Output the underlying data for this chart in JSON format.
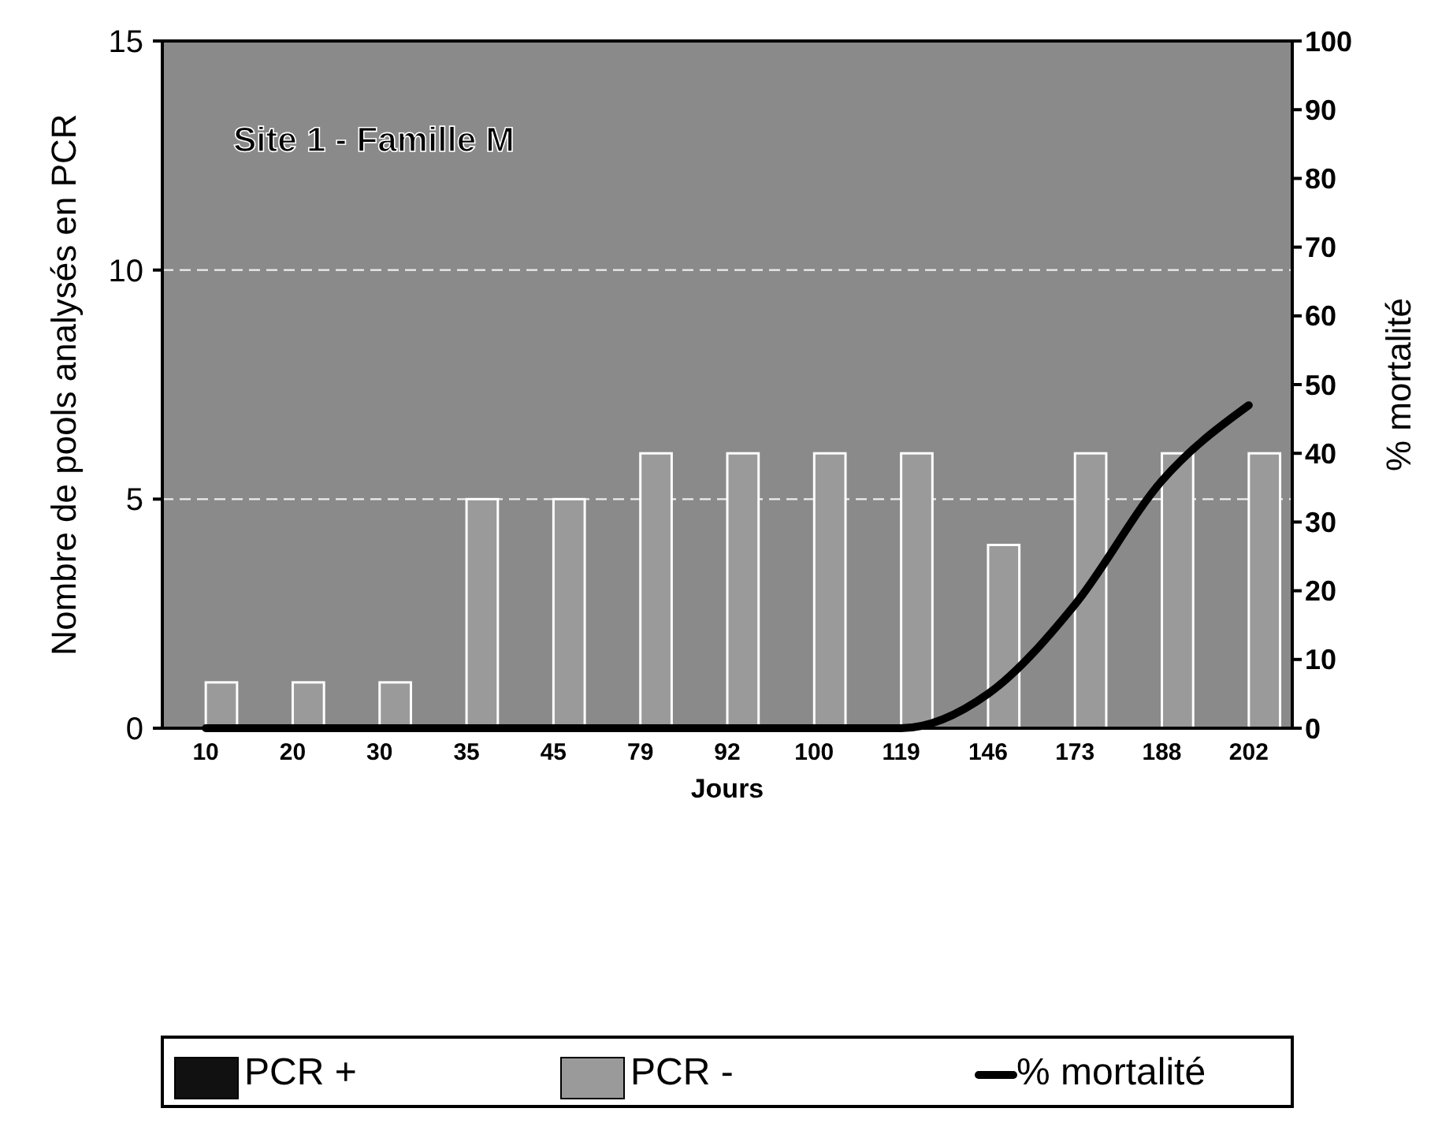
{
  "chart_data": {
    "type": "bar",
    "title": "Site 1 - Famille M",
    "xlabel": "Jours",
    "ylabel": "Nombre de pools analysés en PCR",
    "y2label": "% mortalité",
    "categories": [
      "10",
      "20",
      "30",
      "35",
      "45",
      "79",
      "92",
      "100",
      "119",
      "146",
      "173",
      "188",
      "202"
    ],
    "series": [
      {
        "name": "PCR +",
        "color": "#111111",
        "values": [
          0,
          0,
          0,
          0,
          0,
          0,
          0,
          0,
          0,
          0,
          0,
          0,
          0
        ]
      },
      {
        "name": "PCR -",
        "color": "#9a9a9a",
        "values": [
          1,
          1,
          1,
          5,
          5,
          6,
          6,
          6,
          6,
          4,
          6,
          6,
          6
        ]
      },
      {
        "name": "% mortalité",
        "type": "line",
        "axis": "y2",
        "color": "#000000",
        "values": [
          0,
          0,
          0,
          0,
          0,
          0,
          0,
          0,
          0,
          5,
          18,
          36,
          47
        ]
      }
    ],
    "ylim": [
      0,
      15
    ],
    "yticks": [
      0,
      5,
      10,
      15
    ],
    "y2lim": [
      0,
      100
    ],
    "y2ticks": [
      0,
      10,
      20,
      30,
      40,
      50,
      60,
      70,
      80,
      90,
      100
    ],
    "grid": "y",
    "line_style": "solid",
    "marker": "none",
    "legend": "bottom"
  }
}
